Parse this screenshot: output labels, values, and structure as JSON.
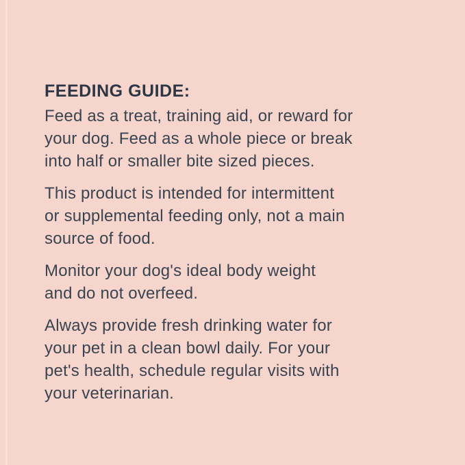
{
  "page": {
    "background_color": "#f6d5cd",
    "edge_strip_color": "#fae2da",
    "heading_color": "#2c3644",
    "body_text_color": "#3a4450"
  },
  "feeding_guide": {
    "heading": "FEEDING GUIDE:",
    "paragraphs": {
      "0": "Feed as a treat, training aid, or reward for\nyour dog. Feed as a whole piece or break\ninto half or smaller bite sized pieces.",
      "1": "This product is intended for intermittent\nor supplemental feeding only, not a main\nsource of food.",
      "2": "Monitor your dog's ideal body weight\nand do not overfeed.",
      "3": "Always provide fresh drinking water for\nyour pet in a clean bowl daily. For your\npet's health, schedule regular visits with\nyour veterinarian."
    }
  }
}
